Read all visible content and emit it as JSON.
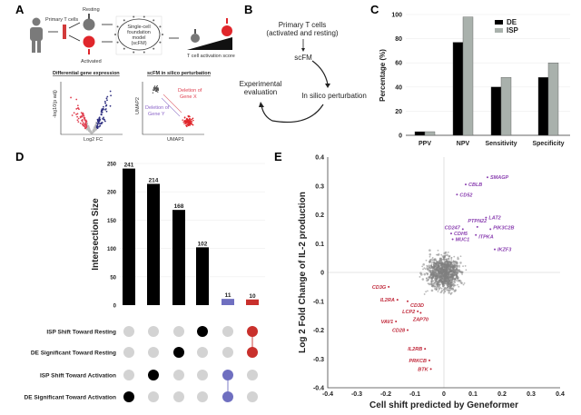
{
  "panels": {
    "a": "A",
    "b": "B",
    "c": "C",
    "d": "D",
    "e": "E"
  },
  "panel_a": {
    "primary_t_cells": "Primary T cells",
    "resting": "Resting",
    "activated": "Activated",
    "model_lines": [
      "Single-cell",
      "foundation",
      "model",
      "(scFM)"
    ],
    "activation_score": "T cell activation score",
    "dge_title": "Differential gene expression",
    "dge_xlabel": "Log2 FC",
    "dge_ylabel": "-log10(p adj)",
    "isp_title": "scFM in silico perturbation",
    "umap1": "UMAP1",
    "umap2": "UMAP2",
    "deletion_x": [
      "Deletion of",
      "Gene X"
    ],
    "deletion_y": [
      "Deletion of",
      "Gene Y"
    ],
    "colors": {
      "resting": "#777777",
      "activated": "#e0262b",
      "down": "#e04050",
      "up": "#2e2f80",
      "purple": "#8a63c8"
    }
  },
  "panel_b": {
    "start": [
      "Primary T cells",
      "(activated and resting)"
    ],
    "scfm": "scFM",
    "isp": "In silico perturbation",
    "eval": [
      "Experimental",
      "evaluation"
    ]
  },
  "chart_data": [
    {
      "id": "C",
      "type": "bar",
      "categories": [
        "PPV",
        "NPV",
        "Sensitivity",
        "Specificity"
      ],
      "series": [
        {
          "name": "DE",
          "color": "#000000",
          "values": [
            3,
            77,
            40,
            48
          ]
        },
        {
          "name": "ISP",
          "color": "#a9b1ac",
          "values": [
            3,
            98,
            48,
            60
          ]
        }
      ],
      "ylabel": "Percentage (%)",
      "ylim": [
        0,
        100
      ],
      "yticks": [
        0,
        20,
        40,
        60,
        80,
        100
      ],
      "legend": "top-right",
      "grid": true
    },
    {
      "id": "D",
      "type": "bar",
      "title": "",
      "ylabel": "Intersection Size",
      "ylim": [
        0,
        250
      ],
      "yticks": [
        0,
        50,
        100,
        150,
        200,
        250
      ],
      "values": [
        241,
        214,
        168,
        102,
        11,
        10
      ],
      "bar_colors": [
        "#000000",
        "#000000",
        "#000000",
        "#000000",
        "#6f6fc0",
        "#c9302c"
      ],
      "sets": [
        "ISP Shift Toward Resting",
        "DE Significant Toward Resting",
        "ISP Shift Toward Activation",
        "DE Significant Toward Activation"
      ],
      "membership": [
        [
          3
        ],
        [
          2
        ],
        [
          1
        ],
        [
          0
        ],
        [
          2,
          3
        ],
        [
          0,
          1
        ]
      ]
    },
    {
      "id": "E",
      "type": "scatter",
      "xlabel": "Cell shift predicted by Geneformer",
      "ylabel": "Log 2 Fold Change of IL-2 production",
      "xlim": [
        -0.4,
        0.4
      ],
      "ylim": [
        -0.4,
        0.4
      ],
      "xticks": [
        -0.4,
        -0.3,
        -0.2,
        -0.1,
        0,
        0.1,
        0.2,
        0.3,
        0.4
      ],
      "yticks": [
        -0.4,
        -0.3,
        -0.2,
        -0.1,
        0,
        0.1,
        0.2,
        0.3,
        0.4
      ],
      "labeled_points": [
        {
          "gene": "SMAGP",
          "x": 0.15,
          "y": 0.33,
          "group": "up"
        },
        {
          "gene": "CBLB",
          "x": 0.075,
          "y": 0.305,
          "group": "up"
        },
        {
          "gene": "CD52",
          "x": 0.045,
          "y": 0.27,
          "group": "up"
        },
        {
          "gene": "LAT2",
          "x": 0.145,
          "y": 0.19,
          "group": "up"
        },
        {
          "gene": "CD247",
          "x": 0.065,
          "y": 0.15,
          "group": "up"
        },
        {
          "gene": "PTPN22",
          "x": 0.115,
          "y": 0.158,
          "group": "up"
        },
        {
          "gene": "PIK3C2B",
          "x": 0.16,
          "y": 0.15,
          "group": "up"
        },
        {
          "gene": "CDH5",
          "x": 0.025,
          "y": 0.135,
          "group": "up"
        },
        {
          "gene": "MUC1",
          "x": 0.03,
          "y": 0.115,
          "group": "up"
        },
        {
          "gene": "ITPKA",
          "x": 0.11,
          "y": 0.13,
          "group": "up"
        },
        {
          "gene": "IKZF3",
          "x": 0.175,
          "y": 0.08,
          "group": "up"
        },
        {
          "gene": "CD3G",
          "x": -0.19,
          "y": -0.05,
          "group": "down"
        },
        {
          "gene": "IL2RA",
          "x": -0.16,
          "y": -0.095,
          "group": "down"
        },
        {
          "gene": "CD3D",
          "x": -0.125,
          "y": -0.1,
          "group": "down"
        },
        {
          "gene": "LCP2",
          "x": -0.09,
          "y": -0.135,
          "group": "down"
        },
        {
          "gene": "ZAP70",
          "x": -0.08,
          "y": -0.14,
          "group": "down"
        },
        {
          "gene": "VAV1",
          "x": -0.165,
          "y": -0.17,
          "group": "down"
        },
        {
          "gene": "CD28",
          "x": -0.125,
          "y": -0.2,
          "group": "down"
        },
        {
          "gene": "IL2RB",
          "x": -0.065,
          "y": -0.265,
          "group": "down"
        },
        {
          "gene": "PRKCB",
          "x": -0.05,
          "y": -0.305,
          "group": "down"
        },
        {
          "gene": "BTK",
          "x": -0.045,
          "y": -0.335,
          "group": "down"
        }
      ],
      "colors": {
        "up": "#8a3fb0",
        "down": "#c0283a",
        "background": "#808080"
      }
    }
  ]
}
